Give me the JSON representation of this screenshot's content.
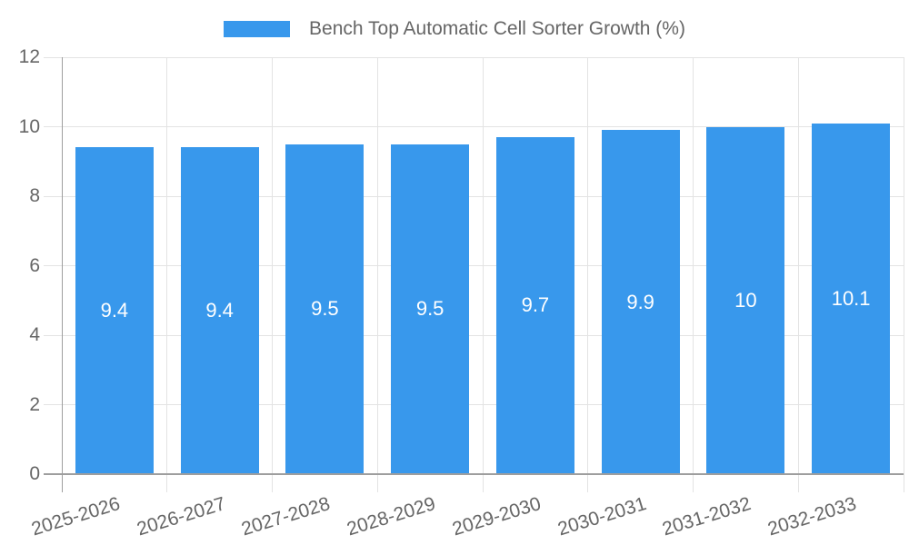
{
  "chart_data": {
    "type": "bar",
    "legend_label": "Bench Top Automatic Cell Sorter Growth (%)",
    "categories": [
      "2025-2026",
      "2026-2027",
      "2027-2028",
      "2028-2029",
      "2029-2030",
      "2030-2031",
      "2031-2032",
      "2032-2033"
    ],
    "values": [
      9.4,
      9.4,
      9.5,
      9.5,
      9.7,
      9.9,
      10,
      10.1
    ],
    "value_labels": [
      "9.4",
      "9.4",
      "9.5",
      "9.5",
      "9.7",
      "9.9",
      "10",
      "10.1"
    ],
    "title": "",
    "xlabel": "",
    "ylabel": "",
    "ylim": [
      0,
      12
    ],
    "yticks": [
      0,
      2,
      4,
      6,
      8,
      10,
      12
    ],
    "grid": true,
    "legend_position": "top-center",
    "x_label_rotation_deg": -17,
    "colors": {
      "bar": "#3898ec",
      "bar_label": "#ffffff",
      "tick_text": "#666666",
      "legend_text": "#666666",
      "grid_line": "#e3e3e3",
      "axis_line": "#9e9e9e",
      "background": "#ffffff"
    }
  }
}
